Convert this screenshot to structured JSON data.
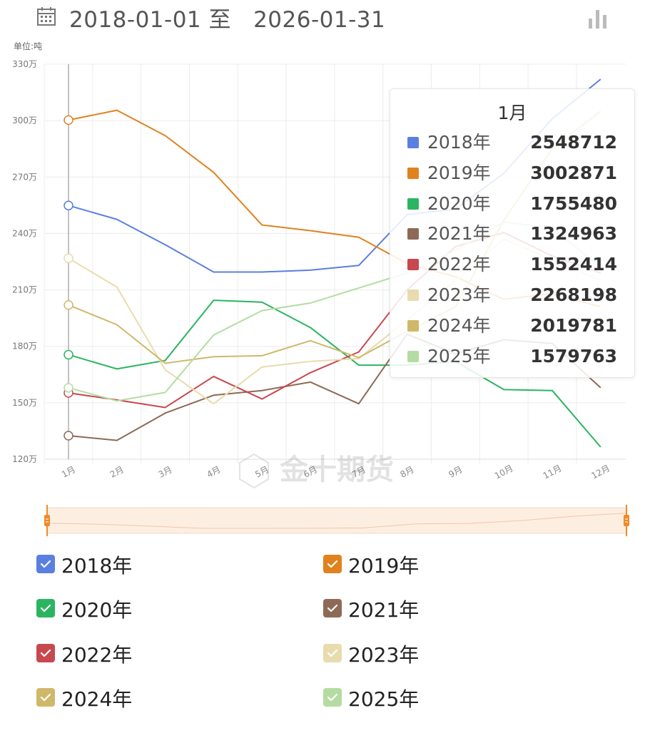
{
  "header": {
    "date_range": "2018-01-01 至   2026-01-31",
    "calendar_icon": "calendar-icon",
    "chart_type_icon": "bar-chart-icon"
  },
  "watermark": "金十期货",
  "chart_data": {
    "type": "line",
    "unit_label": "单位:吨",
    "categories": [
      "1月",
      "2月",
      "3月",
      "4月",
      "5月",
      "6月",
      "7月",
      "8月",
      "9月",
      "10月",
      "11月",
      "12月"
    ],
    "y_ticks": [
      "120万",
      "150万",
      "180万",
      "210万",
      "240万",
      "270万",
      "300万",
      "330万"
    ],
    "ylim": [
      1200000,
      3300000
    ],
    "grid": true,
    "series": [
      {
        "name": "2018年",
        "color": "#5b7fe0",
        "values": [
          2548712,
          2475000,
          2340000,
          2195000,
          2195000,
          2205000,
          2230000,
          2500000,
          2530000,
          2720000,
          3010000,
          3220000
        ]
      },
      {
        "name": "2019年",
        "color": "#e0821e",
        "values": [
          3002871,
          3055000,
          2920000,
          2725000,
          2445000,
          2415000,
          2380000,
          2240000,
          2170000,
          2050000,
          2080000,
          2010000
        ]
      },
      {
        "name": "2020年",
        "color": "#2bb561",
        "values": [
          1755480,
          1680000,
          1725000,
          2045000,
          2035000,
          1900000,
          1700000,
          1700000,
          1720000,
          1570000,
          1565000,
          1265000
        ]
      },
      {
        "name": "2021年",
        "color": "#8e6a56",
        "values": [
          1324963,
          1300000,
          1445000,
          1540000,
          1565000,
          1610000,
          1495000,
          1865000,
          1760000,
          1835000,
          1815000,
          1580000
        ]
      },
      {
        "name": "2022年",
        "color": "#c8484f",
        "values": [
          1552414,
          1515000,
          1475000,
          1640000,
          1520000,
          1660000,
          1770000,
          2100000,
          2330000,
          2405000,
          2280000,
          2190000
        ]
      },
      {
        "name": "2023年",
        "color": "#e8dcae",
        "values": [
          2268198,
          2115000,
          1675000,
          1495000,
          1690000,
          1720000,
          1735000,
          1940000,
          2150000,
          2370000,
          2260000,
          2150000
        ]
      },
      {
        "name": "2024年",
        "color": "#cfb86a",
        "values": [
          2019781,
          1915000,
          1710000,
          1745000,
          1750000,
          1830000,
          1740000,
          1880000,
          2010000,
          2470000,
          2850000,
          3050000
        ]
      },
      {
        "name": "2025年",
        "color": "#b4dca2",
        "values": [
          1579763,
          1510000,
          1555000,
          1860000,
          1990000,
          2030000,
          2110000,
          2190000,
          2310000,
          2460000,
          2430000,
          2220000
        ]
      }
    ],
    "tooltip": {
      "title": "1月",
      "rows": [
        {
          "name": "2018年",
          "value": "2548712",
          "color": "#5b7fe0"
        },
        {
          "name": "2019年",
          "value": "3002871",
          "color": "#e0821e"
        },
        {
          "name": "2020年",
          "value": "1755480",
          "color": "#2bb561"
        },
        {
          "name": "2021年",
          "value": "1324963",
          "color": "#8e6a56"
        },
        {
          "name": "2022年",
          "value": "1552414",
          "color": "#c8484f"
        },
        {
          "name": "2023年",
          "value": "2268198",
          "color": "#e8dcae"
        },
        {
          "name": "2024年",
          "value": "2019781",
          "color": "#cfb86a"
        },
        {
          "name": "2025年",
          "value": "1579763",
          "color": "#b4dca2"
        }
      ]
    },
    "legend": {
      "placement": "bottom",
      "items": [
        {
          "label": "2018年",
          "color": "#5b7fe0",
          "checked": true
        },
        {
          "label": "2019年",
          "color": "#e0821e",
          "checked": true
        },
        {
          "label": "2020年",
          "color": "#2bb561",
          "checked": true
        },
        {
          "label": "2021年",
          "color": "#8e6a56",
          "checked": true
        },
        {
          "label": "2022年",
          "color": "#c8484f",
          "checked": true
        },
        {
          "label": "2023年",
          "color": "#e8dcae",
          "checked": true
        },
        {
          "label": "2024年",
          "color": "#cfb86a",
          "checked": true
        },
        {
          "label": "2025年",
          "color": "#b4dca2",
          "checked": true
        }
      ]
    },
    "data_zoom": {
      "start_percent": 0,
      "end_percent": 100,
      "color": "#f08a2a"
    }
  }
}
